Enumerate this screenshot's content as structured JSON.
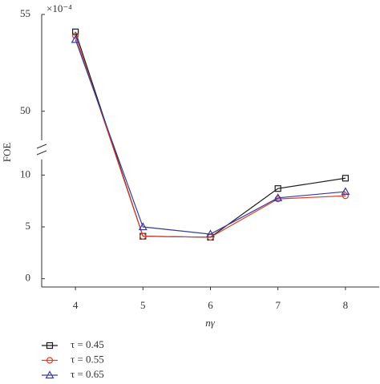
{
  "chart_data": {
    "type": "line",
    "x_label": "nγ",
    "y_label": "FOE",
    "y_multiplier_label": "×10⁻⁴",
    "x": [
      4,
      5,
      6,
      7,
      8
    ],
    "xlim": [
      3.5,
      8.5
    ],
    "xticks": [
      4,
      5,
      6,
      7,
      8
    ],
    "y_segments": [
      {
        "ylim": [
          -0.8,
          11.5
        ],
        "yticks": [
          0,
          5,
          10
        ]
      },
      {
        "ylim": [
          48.5,
          55
        ],
        "yticks": [
          50,
          55
        ]
      }
    ],
    "legend": "bottom-left",
    "series": [
      {
        "name": "τ = 0.45",
        "color": "#1a1a1a",
        "marker": "square",
        "values": [
          54.1,
          4.1,
          4.0,
          8.7,
          9.7
        ]
      },
      {
        "name": "τ = 0.55",
        "color": "#d9412b",
        "marker": "circle",
        "values": [
          53.9,
          4.1,
          4.0,
          7.7,
          8.0
        ]
      },
      {
        "name": "τ = 0.65",
        "color": "#3b3b9a",
        "marker": "triangle",
        "values": [
          53.7,
          5.0,
          4.3,
          7.8,
          8.4
        ]
      }
    ]
  }
}
